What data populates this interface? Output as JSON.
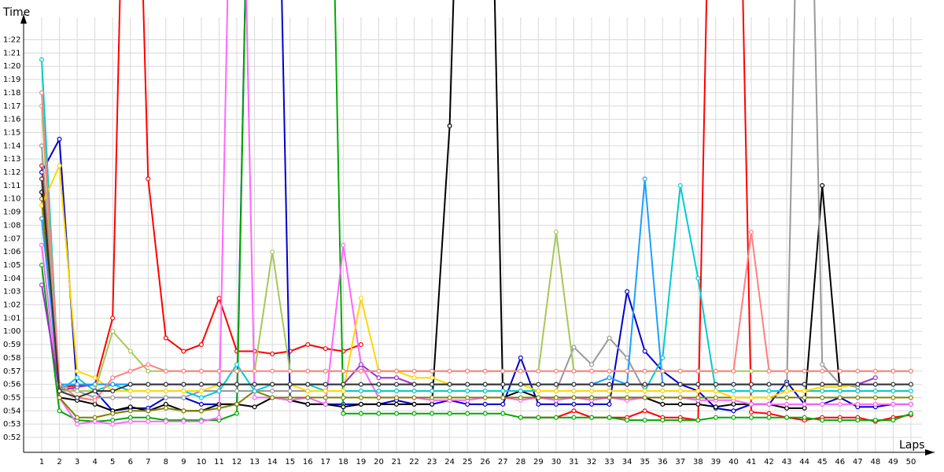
{
  "chart_data": {
    "type": "line",
    "xlabel": "Laps",
    "ylabel": "Time",
    "x_unit": "lap",
    "y_unit": "m:ss",
    "xlim": [
      1,
      50
    ],
    "ylim_seconds": [
      51,
      85
    ],
    "grid": true,
    "legend": "none",
    "x_ticks": [
      "1",
      "2",
      "3",
      "4",
      "5",
      "6",
      "7",
      "8",
      "9",
      "10",
      "11",
      "12",
      "13",
      "14",
      "15",
      "16",
      "17",
      "18",
      "19",
      "20",
      "21",
      "22",
      "23",
      "24",
      "25",
      "26",
      "27",
      "28",
      "29",
      "30",
      "31",
      "32",
      "33",
      "34",
      "35",
      "36",
      "37",
      "38",
      "39",
      "40",
      "41",
      "42",
      "43",
      "44",
      "45",
      "46",
      "47",
      "48",
      "49",
      "50"
    ],
    "y_ticks": [
      "0:52",
      "0:53",
      "0:54",
      "0:55",
      "0:56",
      "0:57",
      "0:58",
      "0:59",
      "1:00",
      "1:01",
      "1:02",
      "1:03",
      "1:04",
      "1:05",
      "1:06",
      "1:07",
      "1:08",
      "1:09",
      "1:10",
      "1:11",
      "1:12",
      "1:13",
      "1:14",
      "1:15",
      "1:16",
      "1:17",
      "1:18",
      "1:19",
      "1:20",
      "1:21",
      "1:22"
    ],
    "x": [
      1,
      2,
      3,
      4,
      5,
      6,
      7,
      8,
      9,
      10,
      11,
      12,
      13,
      14,
      15,
      16,
      17,
      18,
      19,
      20,
      21,
      22,
      23,
      24,
      25,
      26,
      27,
      28,
      29,
      30,
      31,
      32,
      33,
      34,
      35,
      36,
      37,
      38,
      39,
      40,
      41,
      42,
      43,
      44,
      45,
      46,
      47,
      48,
      49,
      50
    ],
    "series": [
      {
        "color": "#ff0000",
        "values": [
          72.5,
          55.8,
          55.9,
          56.0,
          61.0,
          120,
          71.5,
          59.5,
          58.5,
          59.0,
          62.5,
          58.5,
          58.5,
          58.3,
          58.5,
          59.0,
          58.7,
          58.5,
          59.0,
          null,
          null,
          null,
          null,
          null,
          null,
          null,
          null,
          53.5,
          53.5,
          53.5,
          54.0,
          53.5,
          53.5,
          53.5,
          54.0,
          53.5,
          53.5,
          53.3,
          120,
          120,
          53.9,
          53.8,
          53.5,
          53.3,
          53.5,
          53.5,
          53.5,
          53.2,
          53.5,
          53.7
        ]
      },
      {
        "color": "#0000cc",
        "values": [
          72.0,
          74.5,
          55.5,
          55.5,
          54.0,
          54.2,
          54.2,
          55.0,
          55.0,
          54.5,
          54.5,
          54.5,
          120,
          120,
          54.8,
          54.5,
          54.5,
          54.5,
          54.5,
          54.5,
          54.8,
          54.5,
          54.5,
          54.8,
          54.5,
          54.5,
          54.5,
          58.0,
          54.5,
          54.5,
          54.5,
          54.5,
          54.5,
          63.0,
          58.5,
          57.0,
          56.0,
          55.5,
          54.2,
          54.0,
          54.5,
          54.5,
          56.2,
          54.5,
          54.5,
          55.0,
          54.3,
          54.3,
          54.5,
          54.5
        ]
      },
      {
        "color": "#00aa00",
        "values": [
          65.0,
          54.0,
          53.3,
          53.2,
          53.3,
          53.5,
          53.5,
          53.3,
          53.3,
          53.3,
          53.3,
          53.8,
          120,
          120,
          120,
          120,
          120,
          53.8,
          53.8,
          53.8,
          53.8,
          53.8,
          53.8,
          53.8,
          53.8,
          53.8,
          53.8,
          53.5,
          53.5,
          53.5,
          53.5,
          53.5,
          53.5,
          53.3,
          53.3,
          53.3,
          53.3,
          53.3,
          53.5,
          53.5,
          53.5,
          53.5,
          53.5,
          53.5,
          53.3,
          53.3,
          53.3,
          53.3,
          53.3,
          53.8
        ]
      },
      {
        "color": "#000000",
        "values": [
          70.5,
          55.0,
          54.8,
          54.5,
          54.0,
          54.3,
          54.0,
          54.5,
          54.0,
          54.0,
          54.5,
          54.5,
          54.3,
          55.0,
          54.8,
          54.5,
          54.5,
          54.3,
          54.5,
          54.5,
          54.5,
          54.5,
          54.5,
          75.5,
          120,
          120,
          55.0,
          55.5,
          55.0,
          55.0,
          55.0,
          55.0,
          55.0,
          55.0,
          55.0,
          54.5,
          54.5,
          54.5,
          54.3,
          54.5,
          54.5,
          54.5,
          54.2,
          54.2,
          71.0,
          55.5,
          55.5,
          null,
          null,
          null
        ]
      },
      {
        "color": "#ff66ff",
        "values": [
          66.5,
          55.0,
          53.0,
          53.2,
          53.0,
          53.2,
          53.2,
          53.2,
          53.2,
          53.2,
          53.5,
          120,
          55.0,
          55.0,
          54.8,
          55.0,
          54.5,
          66.5,
          57.5,
          55.0,
          55.0,
          55.0,
          54.8,
          54.8,
          54.8,
          55.0,
          55.0,
          54.8,
          55.0,
          54.8,
          55.0,
          54.8,
          55.0,
          54.8,
          55.0,
          55.0,
          55.0,
          54.8,
          54.8,
          54.8,
          54.5,
          54.5,
          54.5,
          54.5,
          54.5,
          54.5,
          54.5,
          54.5,
          54.5,
          54.5
        ]
      },
      {
        "color": "#808000",
        "values": [
          70.0,
          55.0,
          53.5,
          53.5,
          53.8,
          54.0,
          54.0,
          54.2,
          54.0,
          54.0,
          54.2,
          54.5,
          55.5,
          55.0,
          55.0,
          55.0,
          55.0,
          55.0,
          55.0,
          55.0,
          55.0,
          55.0,
          55.0,
          55.0,
          55.0,
          55.0,
          55.0,
          55.0,
          55.0,
          55.0,
          55.0,
          55.0,
          55.0,
          55.0,
          55.0,
          55.0,
          55.0,
          55.0,
          55.0,
          55.0,
          55.0,
          55.0,
          55.0,
          55.0,
          55.0,
          55.0,
          55.0,
          55.0,
          55.0,
          55.0
        ]
      },
      {
        "color": "#999999",
        "values": [
          74.0,
          56.0,
          55.5,
          55.0,
          55.0,
          55.0,
          55.0,
          55.0,
          55.0,
          55.5,
          55.5,
          55.5,
          55.5,
          55.5,
          55.5,
          55.5,
          55.5,
          55.5,
          55.5,
          55.5,
          55.5,
          55.5,
          55.5,
          55.5,
          55.5,
          55.5,
          55.5,
          55.5,
          55.5,
          55.5,
          58.8,
          57.5,
          59.5,
          58.0,
          55.5,
          55.5,
          55.5,
          55.5,
          55.5,
          55.5,
          55.5,
          55.5,
          55.5,
          120,
          57.5,
          56.0,
          55.8,
          null,
          null,
          null
        ]
      },
      {
        "color": "#00cccc",
        "values": [
          80.5,
          55.5,
          56.5,
          55.5,
          56.0,
          55.5,
          55.5,
          55.5,
          55.5,
          55.0,
          55.5,
          57.5,
          55.5,
          56.0,
          56.0,
          56.0,
          55.5,
          55.5,
          55.5,
          55.5,
          55.5,
          55.5,
          55.5,
          55.5,
          55.5,
          55.5,
          55.5,
          55.5,
          55.5,
          55.5,
          55.5,
          55.5,
          55.5,
          55.5,
          55.5,
          58.0,
          71.0,
          64.0,
          55.5,
          55.5,
          55.5,
          55.5,
          55.5,
          55.5,
          55.5,
          55.5,
          55.5,
          55.5,
          55.5,
          55.5
        ]
      },
      {
        "color": "#ffd700",
        "values": [
          69.5,
          72.5,
          57.0,
          56.5,
          55.5,
          55.5,
          55.5,
          55.5,
          55.5,
          55.5,
          56.0,
          56.0,
          56.0,
          56.0,
          56.0,
          55.5,
          55.5,
          55.5,
          62.5,
          57.0,
          57.0,
          56.5,
          56.5,
          56.0,
          56.0,
          56.0,
          56.0,
          56.0,
          55.5,
          55.5,
          55.5,
          55.5,
          55.5,
          55.5,
          55.5,
          55.5,
          55.5,
          55.5,
          55.5,
          55.0,
          55.0,
          55.0,
          55.5,
          55.5,
          55.8,
          55.8,
          56.0,
          null,
          null,
          null
        ]
      },
      {
        "color": "#9933cc",
        "values": [
          63.5,
          55.5,
          55.8,
          56.0,
          56.0,
          56.0,
          56.0,
          56.0,
          56.0,
          56.0,
          56.0,
          56.0,
          56.0,
          56.0,
          56.0,
          56.0,
          56.0,
          56.0,
          57.5,
          56.5,
          56.5,
          56.0,
          56.0,
          56.0,
          56.0,
          56.0,
          56.0,
          56.0,
          56.0,
          56.0,
          56.0,
          56.0,
          56.0,
          56.0,
          56.0,
          56.0,
          56.0,
          56.0,
          56.0,
          56.0,
          56.0,
          56.0,
          56.0,
          56.0,
          56.0,
          56.0,
          56.0,
          56.5,
          null,
          null
        ]
      },
      {
        "color": "#1a9fff",
        "values": [
          68.5,
          56.0,
          56.0,
          56.0,
          56.0,
          56.0,
          56.0,
          56.0,
          56.0,
          56.0,
          56.0,
          56.0,
          56.0,
          56.0,
          56.0,
          56.0,
          56.0,
          56.0,
          56.0,
          56.0,
          56.0,
          56.0,
          56.0,
          56.0,
          56.0,
          56.0,
          56.0,
          56.0,
          56.0,
          56.0,
          56.0,
          56.0,
          56.5,
          56.0,
          71.5,
          56.0,
          56.0,
          56.0,
          56.0,
          56.0,
          56.0,
          56.0,
          56.0,
          56.0,
          56.0,
          56.0,
          56.0,
          56.0,
          56.0,
          56.0
        ]
      },
      {
        "color": "#a6c856",
        "values": [
          77.0,
          55.5,
          55.5,
          55.5,
          60.0,
          58.5,
          57.0,
          57.0,
          57.0,
          57.0,
          57.0,
          57.0,
          57.0,
          66.0,
          57.0,
          57.0,
          57.0,
          57.0,
          57.0,
          57.0,
          57.0,
          57.0,
          57.0,
          57.0,
          57.0,
          57.0,
          57.0,
          57.0,
          57.0,
          67.5,
          57.0,
          57.0,
          57.0,
          57.0,
          57.0,
          57.0,
          57.0,
          57.0,
          57.0,
          57.0,
          57.0,
          57.0,
          57.0,
          57.0,
          57.0,
          57.0,
          57.0,
          57.0,
          57.0,
          57.0
        ]
      },
      {
        "color": "#ff8080",
        "values": [
          78.0,
          56.0,
          55.0,
          54.8,
          56.5,
          57.0,
          57.5,
          57.0,
          57.0,
          57.0,
          57.0,
          57.0,
          57.0,
          57.0,
          57.0,
          57.0,
          57.0,
          57.0,
          57.0,
          57.0,
          57.0,
          57.0,
          57.0,
          57.0,
          57.0,
          57.0,
          57.0,
          57.0,
          57.0,
          57.0,
          57.0,
          57.0,
          57.0,
          57.0,
          57.0,
          57.0,
          57.0,
          57.0,
          57.0,
          57.0,
          67.5,
          57.0,
          57.0,
          57.0,
          57.0,
          57.0,
          57.0,
          57.0,
          57.0,
          57.0
        ]
      },
      {
        "color": "#333333",
        "values": [
          71.5,
          55.5,
          55.0,
          55.5,
          55.5,
          56.0,
          56.0,
          56.0,
          56.0,
          56.0,
          56.0,
          56.0,
          56.0,
          56.0,
          56.0,
          56.0,
          56.0,
          56.0,
          56.0,
          56.0,
          56.0,
          56.0,
          56.0,
          56.0,
          56.0,
          56.0,
          56.0,
          56.0,
          56.0,
          56.0,
          56.0,
          56.0,
          56.0,
          56.0,
          56.0,
          56.0,
          56.0,
          56.0,
          56.0,
          56.0,
          56.0,
          56.0,
          56.0,
          56.0,
          56.0,
          56.0,
          56.0,
          56.0,
          56.0,
          56.0
        ]
      }
    ]
  }
}
